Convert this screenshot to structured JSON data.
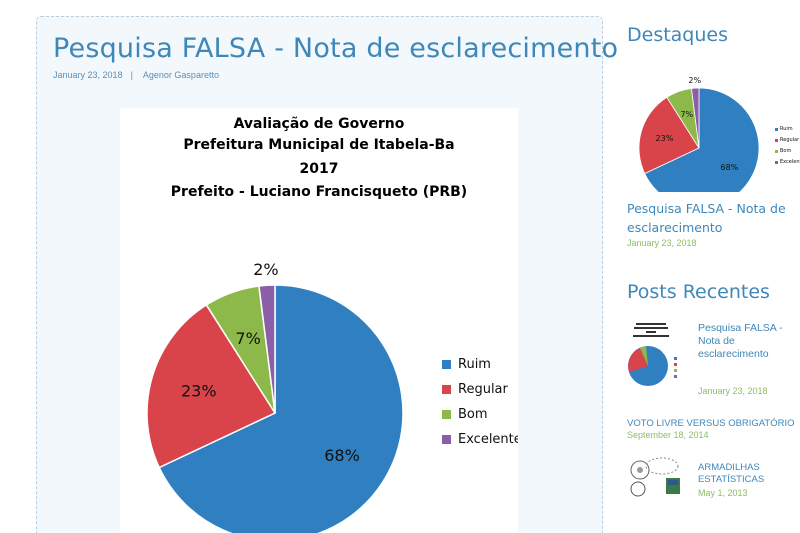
{
  "post": {
    "title": "Pesquisa FALSA - Nota de esclarecimento",
    "date": "January 23, 2018",
    "separator": "|",
    "author": "Agenor Gasparetto"
  },
  "chart_data": {
    "type": "pie",
    "title_lines": [
      "Avaliação de Governo",
      "Prefeitura Municipal de Itabela-Ba",
      "2017",
      "Prefeito - Luciano Francisqueto (PRB)"
    ],
    "categories": [
      "Ruim",
      "Regular",
      "Bom",
      "Excelente"
    ],
    "values": [
      68,
      23,
      7,
      2
    ],
    "labels": [
      "68%",
      "23%",
      "7%",
      "2%"
    ],
    "colors": [
      "#2f7fc1",
      "#d9434a",
      "#8db94a",
      "#8a5fa8"
    ],
    "legend_position": "right"
  },
  "sidebar": {
    "highlights": {
      "heading": "Destaques",
      "post_title": "Pesquisa FALSA - Nota de esclarecimento",
      "post_date": "January 23, 2018",
      "mini_labels": [
        "68%",
        "23%",
        "7%",
        "2%"
      ],
      "mini_legend": [
        "Ruim",
        "Regular",
        "Bom",
        "Excelente"
      ]
    },
    "recent": {
      "heading": "Posts Recentes",
      "items": [
        {
          "title": "Pesquisa FALSA - Nota de esclarecimento",
          "date": "January 23, 2018"
        },
        {
          "title": "VOTO LIVRE VERSUS OBRIGATÓRIO",
          "date": "September 18, 2014"
        },
        {
          "title": "ARMADILHAS ESTATÍSTICAS",
          "date": "May 1, 2013"
        }
      ]
    }
  }
}
